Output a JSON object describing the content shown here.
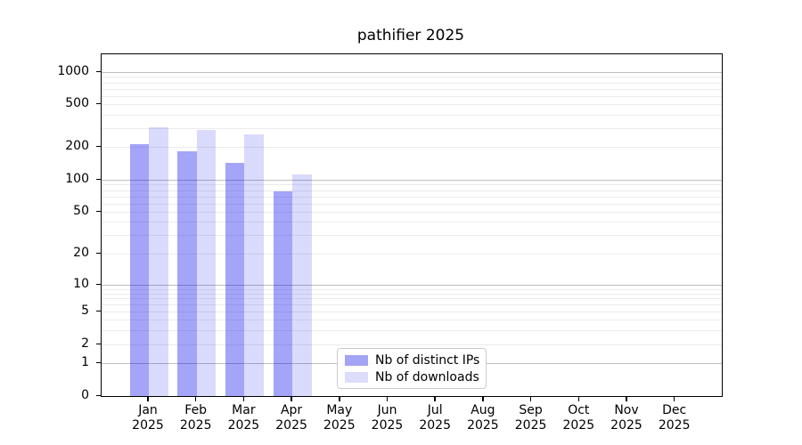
{
  "title": "pathifier 2025",
  "chart_data": {
    "type": "bar",
    "title": "pathifier 2025",
    "categories": [
      "Jan",
      "Feb",
      "Mar",
      "Apr",
      "May",
      "Jun",
      "Jul",
      "Aug",
      "Sep",
      "Oct",
      "Nov",
      "Dec"
    ],
    "category_year": "2025",
    "series": [
      {
        "name": "Nb of distinct IPs",
        "legend_color": "#a4a4f5",
        "bar_fill": "rgba(0,0,235,0.355)",
        "values": [
          212,
          181,
          142,
          78,
          null,
          null,
          null,
          null,
          null,
          null,
          null,
          null
        ]
      },
      {
        "name": "Nb of downloads",
        "legend_color": "#dcdcfb",
        "bar_fill": "rgba(0,0,235,0.145)",
        "values": [
          307,
          289,
          262,
          112,
          null,
          null,
          null,
          null,
          null,
          null,
          null,
          null
        ]
      }
    ],
    "yscale": "log (with 0 baseline)",
    "ytick_values": [
      0,
      1,
      2,
      5,
      10,
      20,
      50,
      100,
      200,
      500,
      1000
    ],
    "ytick_labels": [
      "0",
      "1",
      "2",
      "5",
      "10",
      "20",
      "50",
      "100",
      "200",
      "500",
      "1000"
    ],
    "ylim": [
      0,
      1500
    ],
    "grid": "on",
    "grid_major_color": "#bdbdbd",
    "grid_minor_color": "#ebebeb",
    "legend_position": "lower center (inside axes)"
  }
}
